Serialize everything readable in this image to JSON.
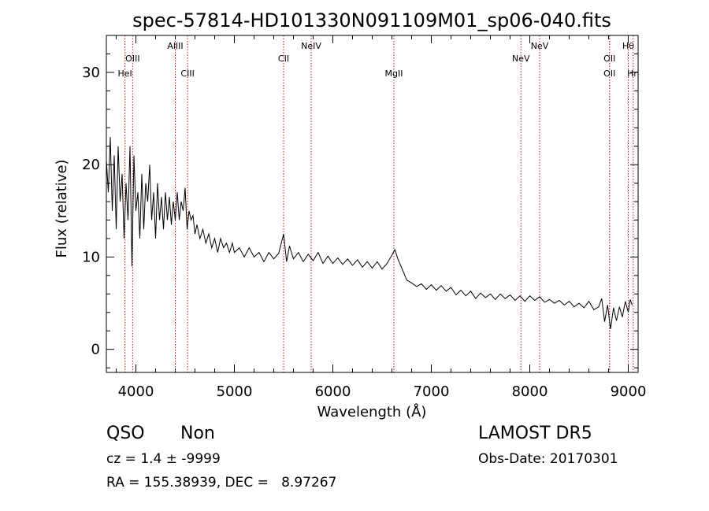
{
  "title": "spec-57814-HD101330N091109M01_sp06-040.fits",
  "chart_data": {
    "type": "line",
    "xlabel": "Wavelength (Å)",
    "ylabel": "Flux (relative)",
    "xlim": [
      3700,
      9100
    ],
    "ylim": [
      -2.5,
      34
    ],
    "xticks": [
      4000,
      5000,
      6000,
      7000,
      8000,
      9000
    ],
    "yticks": [
      0,
      10,
      20,
      30
    ],
    "grid": false,
    "series": [
      {
        "points": [
          [
            3700,
            20.5
          ],
          [
            3720,
            17
          ],
          [
            3740,
            23
          ],
          [
            3760,
            15
          ],
          [
            3780,
            21
          ],
          [
            3800,
            13
          ],
          [
            3820,
            22
          ],
          [
            3840,
            16
          ],
          [
            3860,
            19
          ],
          [
            3880,
            12
          ],
          [
            3900,
            18
          ],
          [
            3920,
            14
          ],
          [
            3940,
            22
          ],
          [
            3960,
            9
          ],
          [
            3980,
            21
          ],
          [
            4000,
            15
          ],
          [
            4020,
            17
          ],
          [
            4040,
            12
          ],
          [
            4060,
            19
          ],
          [
            4080,
            13
          ],
          [
            4100,
            18
          ],
          [
            4120,
            16
          ],
          [
            4140,
            20
          ],
          [
            4160,
            14
          ],
          [
            4180,
            17
          ],
          [
            4200,
            12
          ],
          [
            4220,
            18
          ],
          [
            4240,
            14
          ],
          [
            4260,
            16.5
          ],
          [
            4280,
            13
          ],
          [
            4300,
            17
          ],
          [
            4320,
            14
          ],
          [
            4340,
            16.5
          ],
          [
            4360,
            13.5
          ],
          [
            4380,
            16
          ],
          [
            4400,
            14
          ],
          [
            4420,
            17
          ],
          [
            4440,
            14
          ],
          [
            4460,
            16
          ],
          [
            4480,
            15
          ],
          [
            4500,
            17.5
          ],
          [
            4520,
            13
          ],
          [
            4540,
            15
          ],
          [
            4560,
            14
          ],
          [
            4580,
            14.5
          ],
          [
            4600,
            12.5
          ],
          [
            4620,
            13.5
          ],
          [
            4650,
            12
          ],
          [
            4680,
            13
          ],
          [
            4710,
            11.5
          ],
          [
            4740,
            12.5
          ],
          [
            4770,
            11
          ],
          [
            4800,
            12
          ],
          [
            4830,
            10.5
          ],
          [
            4860,
            12
          ],
          [
            4890,
            11
          ],
          [
            4920,
            11.5
          ],
          [
            4950,
            10.5
          ],
          [
            4980,
            11.5
          ],
          [
            5000,
            10.5
          ],
          [
            5050,
            11
          ],
          [
            5100,
            10
          ],
          [
            5150,
            11
          ],
          [
            5200,
            10
          ],
          [
            5250,
            10.5
          ],
          [
            5300,
            9.5
          ],
          [
            5350,
            10.5
          ],
          [
            5400,
            9.8
          ],
          [
            5450,
            10.4
          ],
          [
            5500,
            12.5
          ],
          [
            5530,
            9.5
          ],
          [
            5560,
            11.2
          ],
          [
            5600,
            9.8
          ],
          [
            5650,
            10.5
          ],
          [
            5700,
            9.5
          ],
          [
            5750,
            10.3
          ],
          [
            5800,
            9.6
          ],
          [
            5850,
            10.5
          ],
          [
            5900,
            9.3
          ],
          [
            5950,
            10.1
          ],
          [
            6000,
            9.3
          ],
          [
            6050,
            9.9
          ],
          [
            6100,
            9.2
          ],
          [
            6150,
            9.8
          ],
          [
            6200,
            9.1
          ],
          [
            6250,
            9.7
          ],
          [
            6300,
            8.9
          ],
          [
            6350,
            9.5
          ],
          [
            6400,
            8.8
          ],
          [
            6450,
            9.5
          ],
          [
            6500,
            8.7
          ],
          [
            6550,
            9.3
          ],
          [
            6600,
            10.2
          ],
          [
            6630,
            10.8
          ],
          [
            6660,
            9.8
          ],
          [
            6700,
            8.8
          ],
          [
            6750,
            7.5
          ],
          [
            6800,
            7.2
          ],
          [
            6850,
            6.8
          ],
          [
            6900,
            7.1
          ],
          [
            6950,
            6.5
          ],
          [
            7000,
            7.0
          ],
          [
            7050,
            6.4
          ],
          [
            7100,
            6.9
          ],
          [
            7150,
            6.3
          ],
          [
            7200,
            6.7
          ],
          [
            7250,
            5.9
          ],
          [
            7300,
            6.4
          ],
          [
            7350,
            5.8
          ],
          [
            7400,
            6.3
          ],
          [
            7450,
            5.5
          ],
          [
            7500,
            6.1
          ],
          [
            7550,
            5.6
          ],
          [
            7600,
            6.0
          ],
          [
            7650,
            5.4
          ],
          [
            7700,
            6.0
          ],
          [
            7750,
            5.5
          ],
          [
            7800,
            5.9
          ],
          [
            7850,
            5.3
          ],
          [
            7900,
            5.8
          ],
          [
            7950,
            5.2
          ],
          [
            8000,
            5.8
          ],
          [
            8050,
            5.3
          ],
          [
            8100,
            5.7
          ],
          [
            8150,
            5.1
          ],
          [
            8200,
            5.4
          ],
          [
            8250,
            5.0
          ],
          [
            8300,
            5.3
          ],
          [
            8350,
            4.8
          ],
          [
            8400,
            5.2
          ],
          [
            8450,
            4.6
          ],
          [
            8500,
            5.0
          ],
          [
            8550,
            4.5
          ],
          [
            8600,
            5.2
          ],
          [
            8650,
            4.3
          ],
          [
            8700,
            4.6
          ],
          [
            8730,
            5.5
          ],
          [
            8760,
            3.0
          ],
          [
            8790,
            4.8
          ],
          [
            8820,
            2.2
          ],
          [
            8850,
            4.5
          ],
          [
            8880,
            3.1
          ],
          [
            8910,
            4.6
          ],
          [
            8940,
            3.5
          ],
          [
            8970,
            5.2
          ],
          [
            9000,
            4.0
          ],
          [
            9020,
            5.4
          ],
          [
            9040,
            4.8
          ]
        ]
      }
    ],
    "lines": [
      {
        "label": "HeI",
        "x": 3889,
        "row": 3
      },
      {
        "label": "OIII",
        "x": 3967,
        "row": 2
      },
      {
        "label": "AlIII",
        "x": 4400,
        "row": 1
      },
      {
        "label": "CIII",
        "x": 4525,
        "row": 3
      },
      {
        "label": "CII",
        "x": 5500,
        "row": 2
      },
      {
        "label": "NeIV",
        "x": 5780,
        "row": 1
      },
      {
        "label": "MgII",
        "x": 6620,
        "row": 3
      },
      {
        "label": "NeV",
        "x": 7910,
        "row": 2
      },
      {
        "label": "NeV",
        "x": 8100,
        "row": 1
      },
      {
        "label": "OII",
        "x": 8810,
        "row": 2
      },
      {
        "label": "OII",
        "x": 8810,
        "row": 3
      },
      {
        "label": "Hθ",
        "x": 9000,
        "row": 1
      },
      {
        "label": "Hη",
        "x": 9050,
        "row": 3
      }
    ],
    "line_color": "#c01818"
  },
  "info": {
    "class": "QSO",
    "subclass": "Non",
    "cz": "cz = 1.4 ± -9999",
    "radec": "RA = 155.38939, DEC =   8.97267",
    "survey": "LAMOST DR5",
    "obsdate": "Obs-Date: 20170301"
  }
}
